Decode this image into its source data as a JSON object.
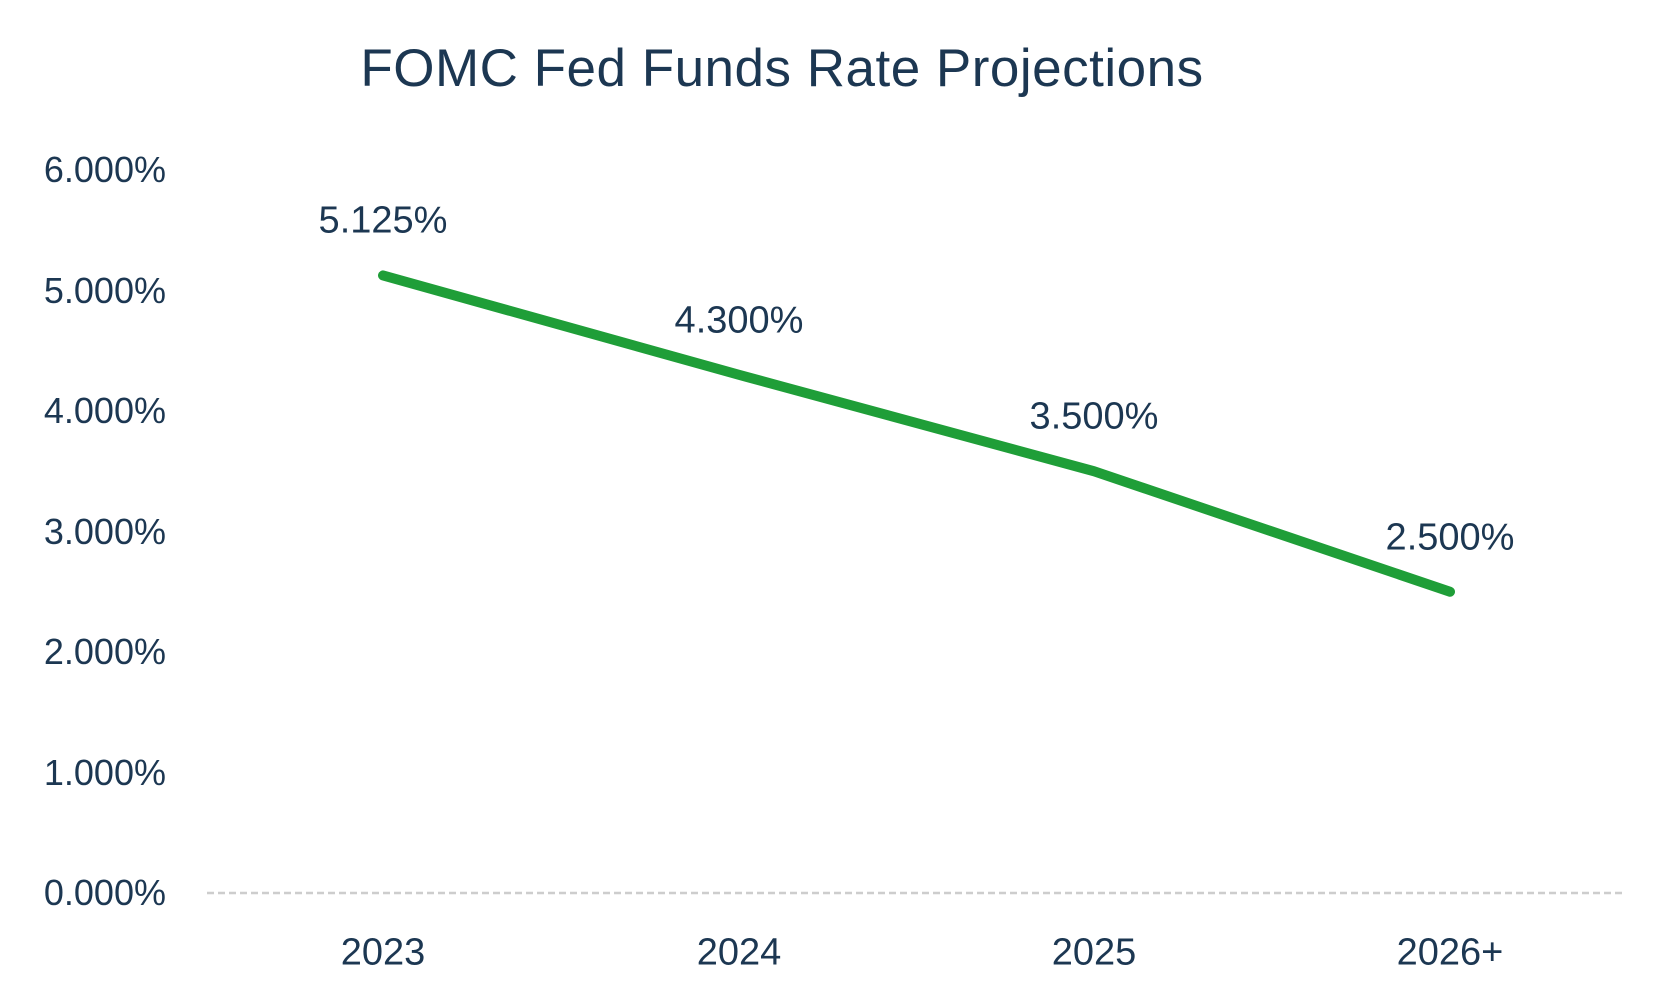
{
  "chart_data": {
    "type": "line",
    "title": "FOMC Fed Funds Rate Projections",
    "categories": [
      "2023",
      "2024",
      "2025",
      "2026+"
    ],
    "values": [
      5.125,
      4.3,
      3.5,
      2.5
    ],
    "point_labels": [
      "5.125%",
      "4.300%",
      "3.500%",
      "2.500%"
    ],
    "y_tick_labels": [
      "6.000%",
      "5.000%",
      "4.000%",
      "3.000%",
      "2.000%",
      "1.000%",
      "0.000%"
    ],
    "y_tick_values": [
      6,
      5,
      4,
      3,
      2,
      1,
      0
    ],
    "ylim": [
      0,
      6
    ],
    "xlabel": "",
    "ylabel": "",
    "grid": false,
    "legend": "none",
    "line_style": {
      "width": 10,
      "cap": "round",
      "markers": "none"
    },
    "colors": {
      "line": "#1f9e38",
      "text": "#1c3752",
      "axis_line": "#cdcdcd",
      "background": "#ffffff"
    }
  }
}
